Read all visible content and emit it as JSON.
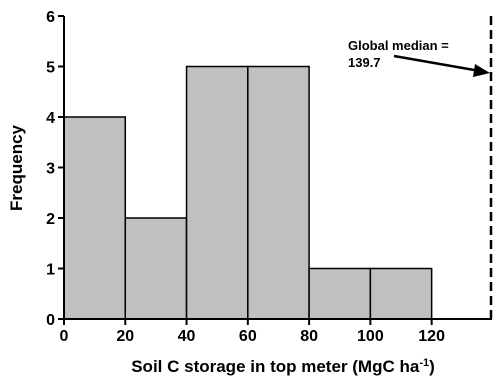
{
  "chart_data": {
    "type": "bar",
    "bins": [
      {
        "x0": 0,
        "x1": 20,
        "count": 4
      },
      {
        "x0": 20,
        "x1": 40,
        "count": 2
      },
      {
        "x0": 40,
        "x1": 60,
        "count": 5
      },
      {
        "x0": 60,
        "x1": 80,
        "count": 5
      },
      {
        "x0": 80,
        "x1": 100,
        "count": 1
      },
      {
        "x0": 100,
        "x1": 120,
        "count": 1
      }
    ],
    "xlim": [
      0,
      139.7
    ],
    "ylim": [
      0,
      6
    ],
    "x_ticks": [
      "0",
      "20",
      "40",
      "60",
      "80",
      "100",
      "120"
    ],
    "y_ticks": [
      "0",
      "1",
      "2",
      "3",
      "4",
      "5",
      "6"
    ],
    "xlabel_main": "Soil C storage in top meter (MgC ha",
    "xlabel_sup": "-1",
    "xlabel_end": ")",
    "ylabel": "Frequency",
    "reference_line": {
      "x": 139.7,
      "style": "dashed"
    },
    "annotation_line1": "Global median =",
    "annotation_line2": "139.7",
    "bar_fill": "#c0c0c0",
    "bar_stroke": "#000000"
  }
}
